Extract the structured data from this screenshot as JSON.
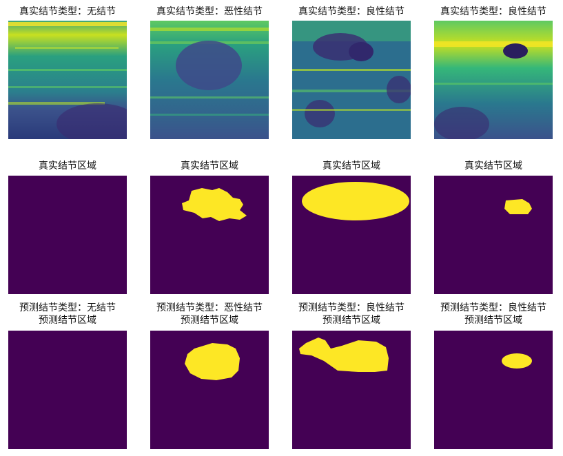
{
  "figure": {
    "rows": [
      {
        "row": "ultrasound",
        "panels": [
          {
            "title": "真实结节类型：无结节"
          },
          {
            "title": "真实结节类型：恶性结节"
          },
          {
            "title": "真实结节类型：良性结节"
          },
          {
            "title": "真实结节类型：良性结节"
          }
        ]
      },
      {
        "row": "ground-truth-mask",
        "panels": [
          {
            "title": "真实结节区域"
          },
          {
            "title": "真实结节区域"
          },
          {
            "title": "真实结节区域"
          },
          {
            "title": "真实结节区域"
          }
        ]
      },
      {
        "row": "predicted-mask",
        "panels": [
          {
            "title_line1": "预测结节类型：无结节",
            "title_line2": "预测结节区域"
          },
          {
            "title_line1": "预测结节类型：恶性结节",
            "title_line2": "预测结节区域"
          },
          {
            "title_line1": "预测结节类型：良性结节",
            "title_line2": "预测结节区域"
          },
          {
            "title_line1": "预测结节类型：良性结节",
            "title_line2": "预测结节区域"
          }
        ]
      }
    ],
    "colors": {
      "mask_background": "#440154",
      "mask_foreground": "#FDE725",
      "viridis_dark": "#3b528b",
      "viridis_mid": "#21918c",
      "viridis_light": "#5ec962",
      "viridis_bright": "#fde725"
    }
  }
}
